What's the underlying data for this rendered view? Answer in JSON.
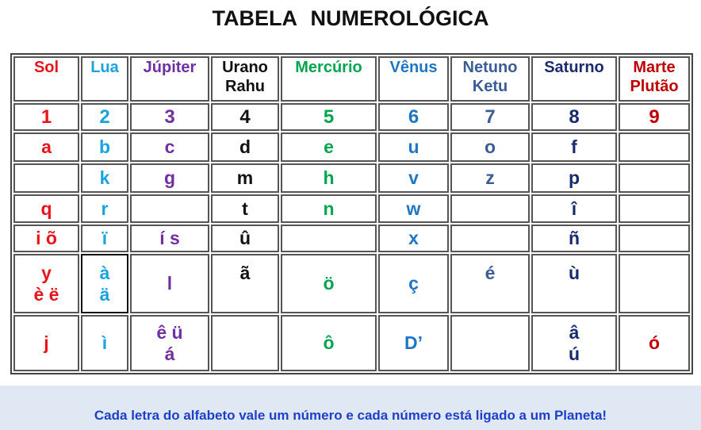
{
  "title": "TABELA   NUMEROLÓGICA",
  "colors": [
    "#e8141c",
    "#1aa3e0",
    "#7030a0",
    "#111111",
    "#00a550",
    "#1f77c4",
    "#3b5c94",
    "#1a2a6c",
    "#c00000"
  ],
  "planets": [
    "Sol",
    "Lua",
    "Júpiter",
    "Urano\nRahu",
    "Mercúrio",
    "Vênus",
    "Netuno\nKetu",
    "Saturno",
    "Marte\nPlutão"
  ],
  "numbers": [
    "1",
    "2",
    "3",
    "4",
    "5",
    "6",
    "7",
    "8",
    "9"
  ],
  "rows": [
    [
      "a",
      "b",
      "c",
      "d",
      "e",
      "u",
      "o",
      "f",
      ""
    ],
    [
      "",
      "k",
      "g",
      "m",
      "h",
      "v",
      "z",
      "p",
      ""
    ],
    [
      "q",
      "r",
      "",
      "t",
      "n",
      "w",
      "",
      "î",
      ""
    ],
    [
      "i  õ",
      "ï",
      "í   s",
      "û",
      "",
      "x",
      "",
      "ñ",
      ""
    ],
    [
      "y\nè ë",
      "à\nä",
      "l",
      "ã\n\n",
      "ö",
      "ç",
      "é\n\n",
      "ù\n\n",
      ""
    ],
    [
      "j",
      "ì",
      "ê  ü\ná",
      "",
      "ô\n",
      "D’",
      "",
      "â\nú",
      "ó\n"
    ]
  ],
  "footer": "Cada letra do alfabeto vale um número e cada número está ligado a um Planeta!"
}
